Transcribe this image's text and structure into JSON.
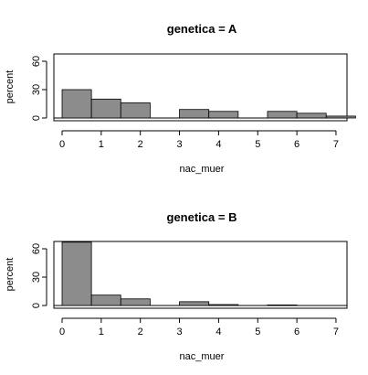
{
  "chart_data": [
    {
      "type": "bar",
      "title": "genetica = A",
      "xlabel": "nac_muer",
      "ylabel": "percent",
      "ylim": [
        0,
        70
      ],
      "yticks": [
        0,
        30,
        60
      ],
      "xticks": [
        "0",
        "1",
        "2",
        "3",
        "4",
        "5",
        "6",
        "7"
      ],
      "xlim": [
        0,
        7.25
      ],
      "bins": [
        {
          "start": 0.0,
          "end": 0.75,
          "value": 30
        },
        {
          "start": 0.75,
          "end": 1.5,
          "value": 20
        },
        {
          "start": 1.5,
          "end": 2.25,
          "value": 16
        },
        {
          "start": 2.25,
          "end": 3.0,
          "value": 0
        },
        {
          "start": 3.0,
          "end": 3.75,
          "value": 9
        },
        {
          "start": 3.75,
          "end": 4.5,
          "value": 7
        },
        {
          "start": 4.5,
          "end": 5.25,
          "value": 0
        },
        {
          "start": 5.25,
          "end": 6.0,
          "value": 7
        },
        {
          "start": 6.0,
          "end": 6.75,
          "value": 5
        },
        {
          "start": 6.75,
          "end": 7.5,
          "value": 2
        }
      ]
    },
    {
      "type": "bar",
      "title": "genetica = B",
      "xlabel": "nac_muer",
      "ylabel": "percent",
      "ylim": [
        0,
        70
      ],
      "yticks": [
        0,
        30,
        60
      ],
      "xticks": [
        "0",
        "1",
        "2",
        "3",
        "4",
        "5",
        "6",
        "7"
      ],
      "xlim": [
        0,
        7.25
      ],
      "bins": [
        {
          "start": 0.0,
          "end": 0.75,
          "value": 67
        },
        {
          "start": 0.75,
          "end": 1.5,
          "value": 11
        },
        {
          "start": 1.5,
          "end": 2.25,
          "value": 7
        },
        {
          "start": 2.25,
          "end": 3.0,
          "value": 0
        },
        {
          "start": 3.0,
          "end": 3.75,
          "value": 4
        },
        {
          "start": 3.75,
          "end": 4.5,
          "value": 1
        },
        {
          "start": 4.5,
          "end": 5.25,
          "value": 0
        },
        {
          "start": 5.25,
          "end": 6.0,
          "value": 0.6
        },
        {
          "start": 6.0,
          "end": 6.75,
          "value": 0
        },
        {
          "start": 6.75,
          "end": 7.5,
          "value": 0
        }
      ]
    }
  ]
}
